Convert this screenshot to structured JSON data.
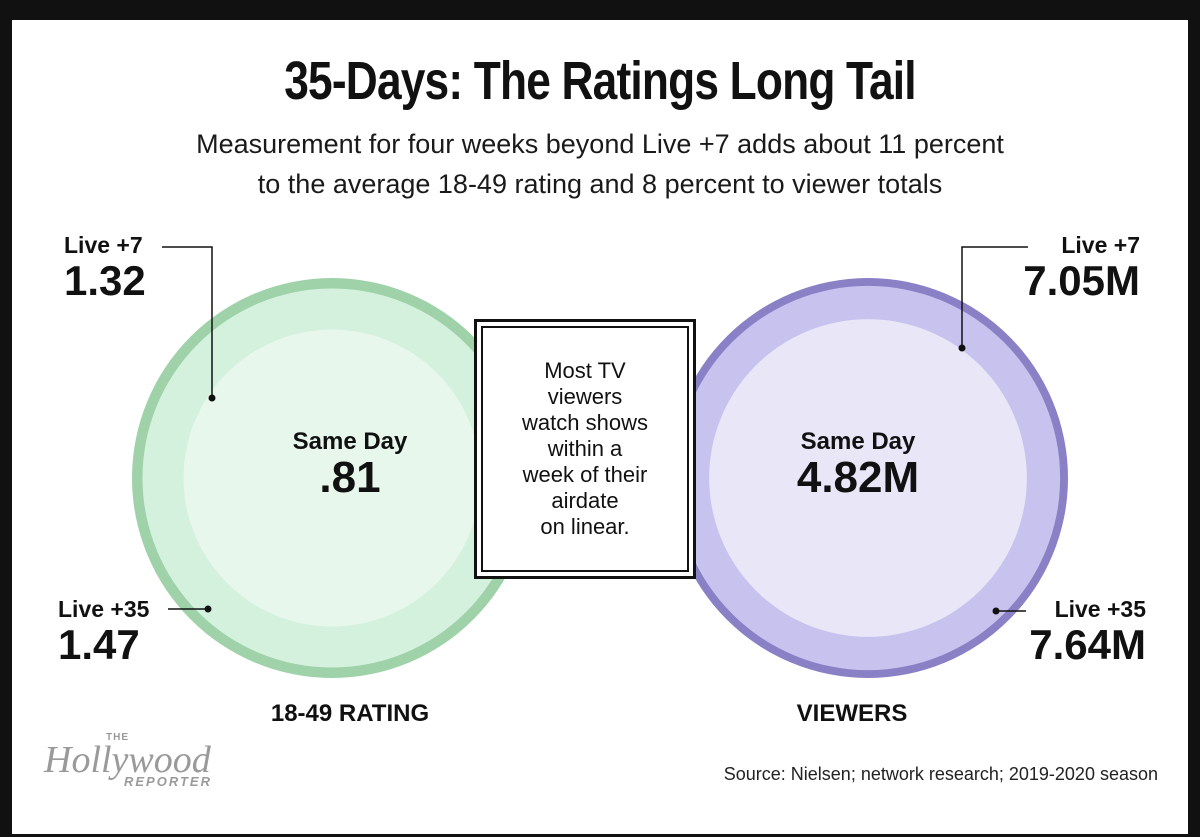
{
  "title": "35-Days: The Ratings Long Tail",
  "subtitle": {
    "line1": "Measurement for four weeks beyond Live +7 adds about 11 percent",
    "line2": "to the average 18-49 rating and 8 percent to viewer totals"
  },
  "callout": {
    "lines": [
      "Most TV",
      "viewers",
      "watch shows",
      "within a",
      "week of their",
      "airdate",
      "on linear."
    ]
  },
  "chart_data": [
    {
      "type": "nested-circle",
      "title": "18-49 RATING",
      "categories": [
        "Same Day",
        "Live +7",
        "Live +35"
      ],
      "values": [
        0.81,
        1.32,
        1.47
      ],
      "labels": [
        ".81",
        "1.32",
        "1.47"
      ],
      "colors": [
        "#e8f7ec",
        "#d4f1dd",
        "#9fd2a9"
      ]
    },
    {
      "type": "nested-circle",
      "title": "VIEWERS",
      "categories": [
        "Same Day",
        "Live +7",
        "Live +35"
      ],
      "values": [
        4.82,
        7.05,
        7.64
      ],
      "labels": [
        "4.82M",
        "7.05M",
        "7.64M"
      ],
      "colors": [
        "#e9e6f8",
        "#c7c2ee",
        "#8a80c6"
      ]
    }
  ],
  "source": "Source: Nielsen; network research; 2019-2020 season",
  "logo": {
    "the": "THE",
    "main": "Hollywood",
    "reporter": "REPORTER"
  }
}
